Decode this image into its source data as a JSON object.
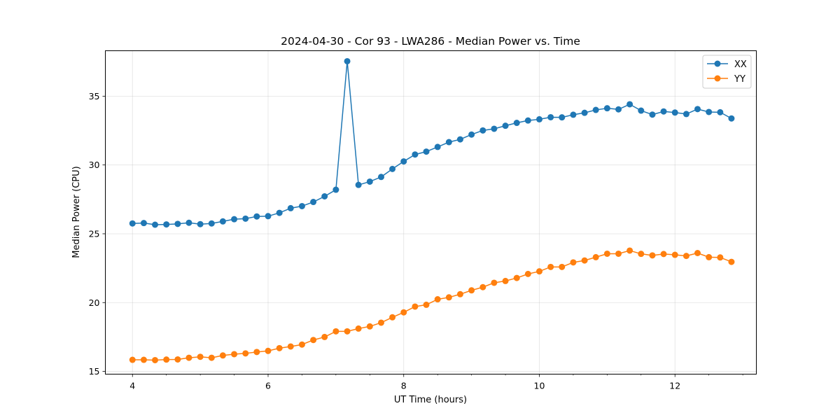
{
  "chart_data": {
    "type": "line",
    "title": "2024-04-30 - Cor 93 - LWA286 - Median Power vs. Time",
    "xlabel": "UT Time (hours)",
    "ylabel": "Median Power (CPU)",
    "xlim": [
      3.6,
      13.2
    ],
    "ylim": [
      14.8,
      38.3
    ],
    "xticks": [
      4,
      6,
      8,
      10,
      12
    ],
    "xtick_labels": [
      "4",
      "6",
      "8",
      "10",
      "12"
    ],
    "yticks": [
      15,
      20,
      25,
      30,
      35
    ],
    "ytick_labels": [
      "15",
      "20",
      "25",
      "30",
      "35"
    ],
    "grid": true,
    "legend_position": "top-right",
    "x": [
      4.0,
      4.167,
      4.333,
      4.5,
      4.667,
      4.833,
      5.0,
      5.167,
      5.333,
      5.5,
      5.667,
      5.833,
      6.0,
      6.167,
      6.333,
      6.5,
      6.667,
      6.833,
      7.0,
      7.167,
      7.333,
      7.5,
      7.667,
      7.833,
      8.0,
      8.167,
      8.333,
      8.5,
      8.667,
      8.833,
      9.0,
      9.167,
      9.333,
      9.5,
      9.667,
      9.833,
      10.0,
      10.167,
      10.333,
      10.5,
      10.667,
      10.833,
      11.0,
      11.167,
      11.333,
      11.5,
      11.667,
      11.833,
      12.0,
      12.167,
      12.333,
      12.5,
      12.667,
      12.833
    ],
    "series": [
      {
        "name": "XX",
        "color": "#1f77b4",
        "values": [
          25.75,
          25.78,
          25.66,
          25.68,
          25.72,
          25.8,
          25.7,
          25.75,
          25.9,
          26.06,
          26.1,
          26.26,
          26.28,
          26.52,
          26.86,
          27.01,
          27.31,
          27.72,
          28.2,
          37.54,
          28.55,
          28.79,
          29.13,
          29.71,
          30.26,
          30.76,
          30.97,
          31.31,
          31.66,
          31.86,
          32.21,
          32.51,
          32.63,
          32.85,
          33.06,
          33.23,
          33.32,
          33.47,
          33.46,
          33.65,
          33.79,
          34.0,
          34.12,
          34.04,
          34.41,
          33.95,
          33.66,
          33.89,
          33.81,
          33.7,
          34.06,
          33.85,
          33.83,
          33.38
        ]
      },
      {
        "name": "YY",
        "color": "#ff7f0e",
        "values": [
          15.84,
          15.84,
          15.82,
          15.86,
          15.87,
          15.99,
          16.06,
          15.99,
          16.16,
          16.25,
          16.31,
          16.41,
          16.49,
          16.69,
          16.81,
          16.95,
          17.28,
          17.5,
          17.91,
          17.91,
          18.11,
          18.27,
          18.54,
          18.93,
          19.29,
          19.71,
          19.84,
          20.24,
          20.38,
          20.61,
          20.89,
          21.12,
          21.44,
          21.57,
          21.79,
          22.08,
          22.27,
          22.59,
          22.59,
          22.92,
          23.06,
          23.3,
          23.55,
          23.55,
          23.78,
          23.54,
          23.43,
          23.53,
          23.47,
          23.39,
          23.6,
          23.3,
          23.28,
          22.96
        ]
      }
    ]
  }
}
